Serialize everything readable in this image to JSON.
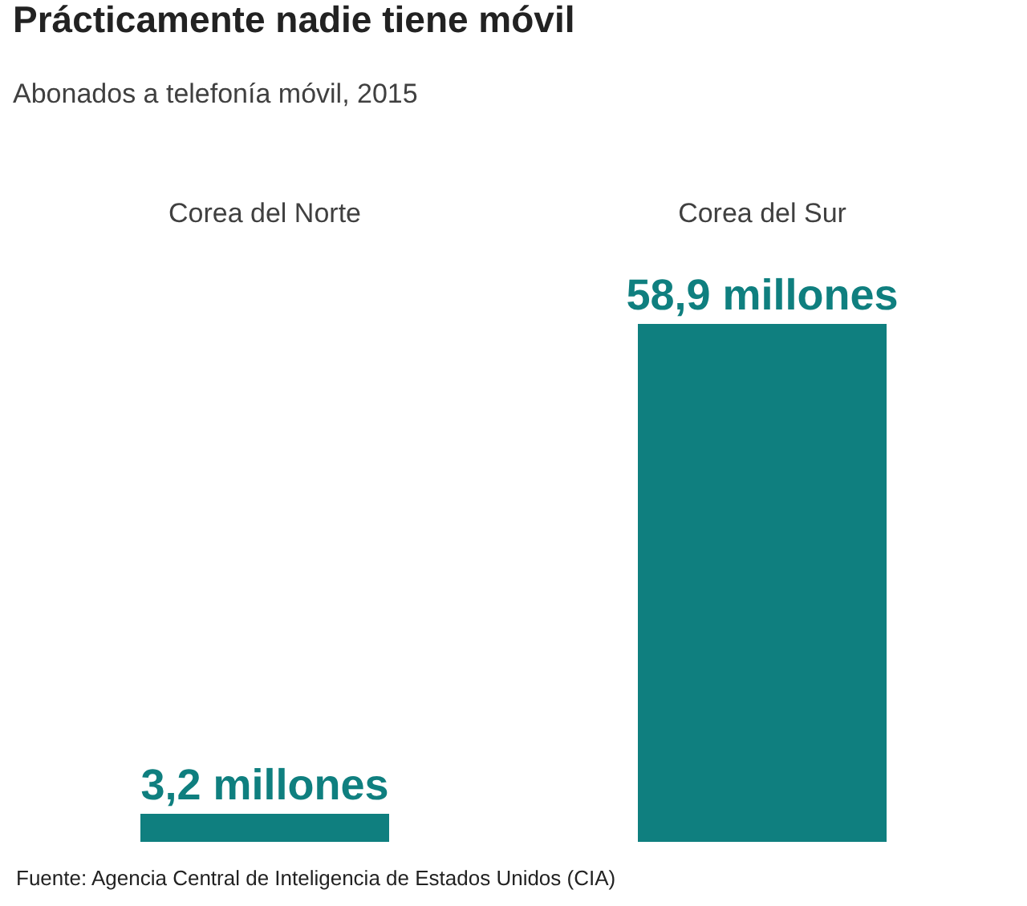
{
  "chart_data": {
    "type": "bar",
    "title": "Prácticamente nadie tiene móvil",
    "subtitle": "Abonados a telefonía móvil, 2015",
    "categories": [
      "Corea del Norte",
      "Corea del Sur"
    ],
    "values": [
      3.2,
      58.9
    ],
    "value_labels": [
      "3,2 millones",
      "58,9 millones"
    ],
    "color": "#0f7f7f",
    "annotations": [
      "Fuente: Agencia Central de Inteligencia de Estados Unidos (CIA)"
    ]
  }
}
